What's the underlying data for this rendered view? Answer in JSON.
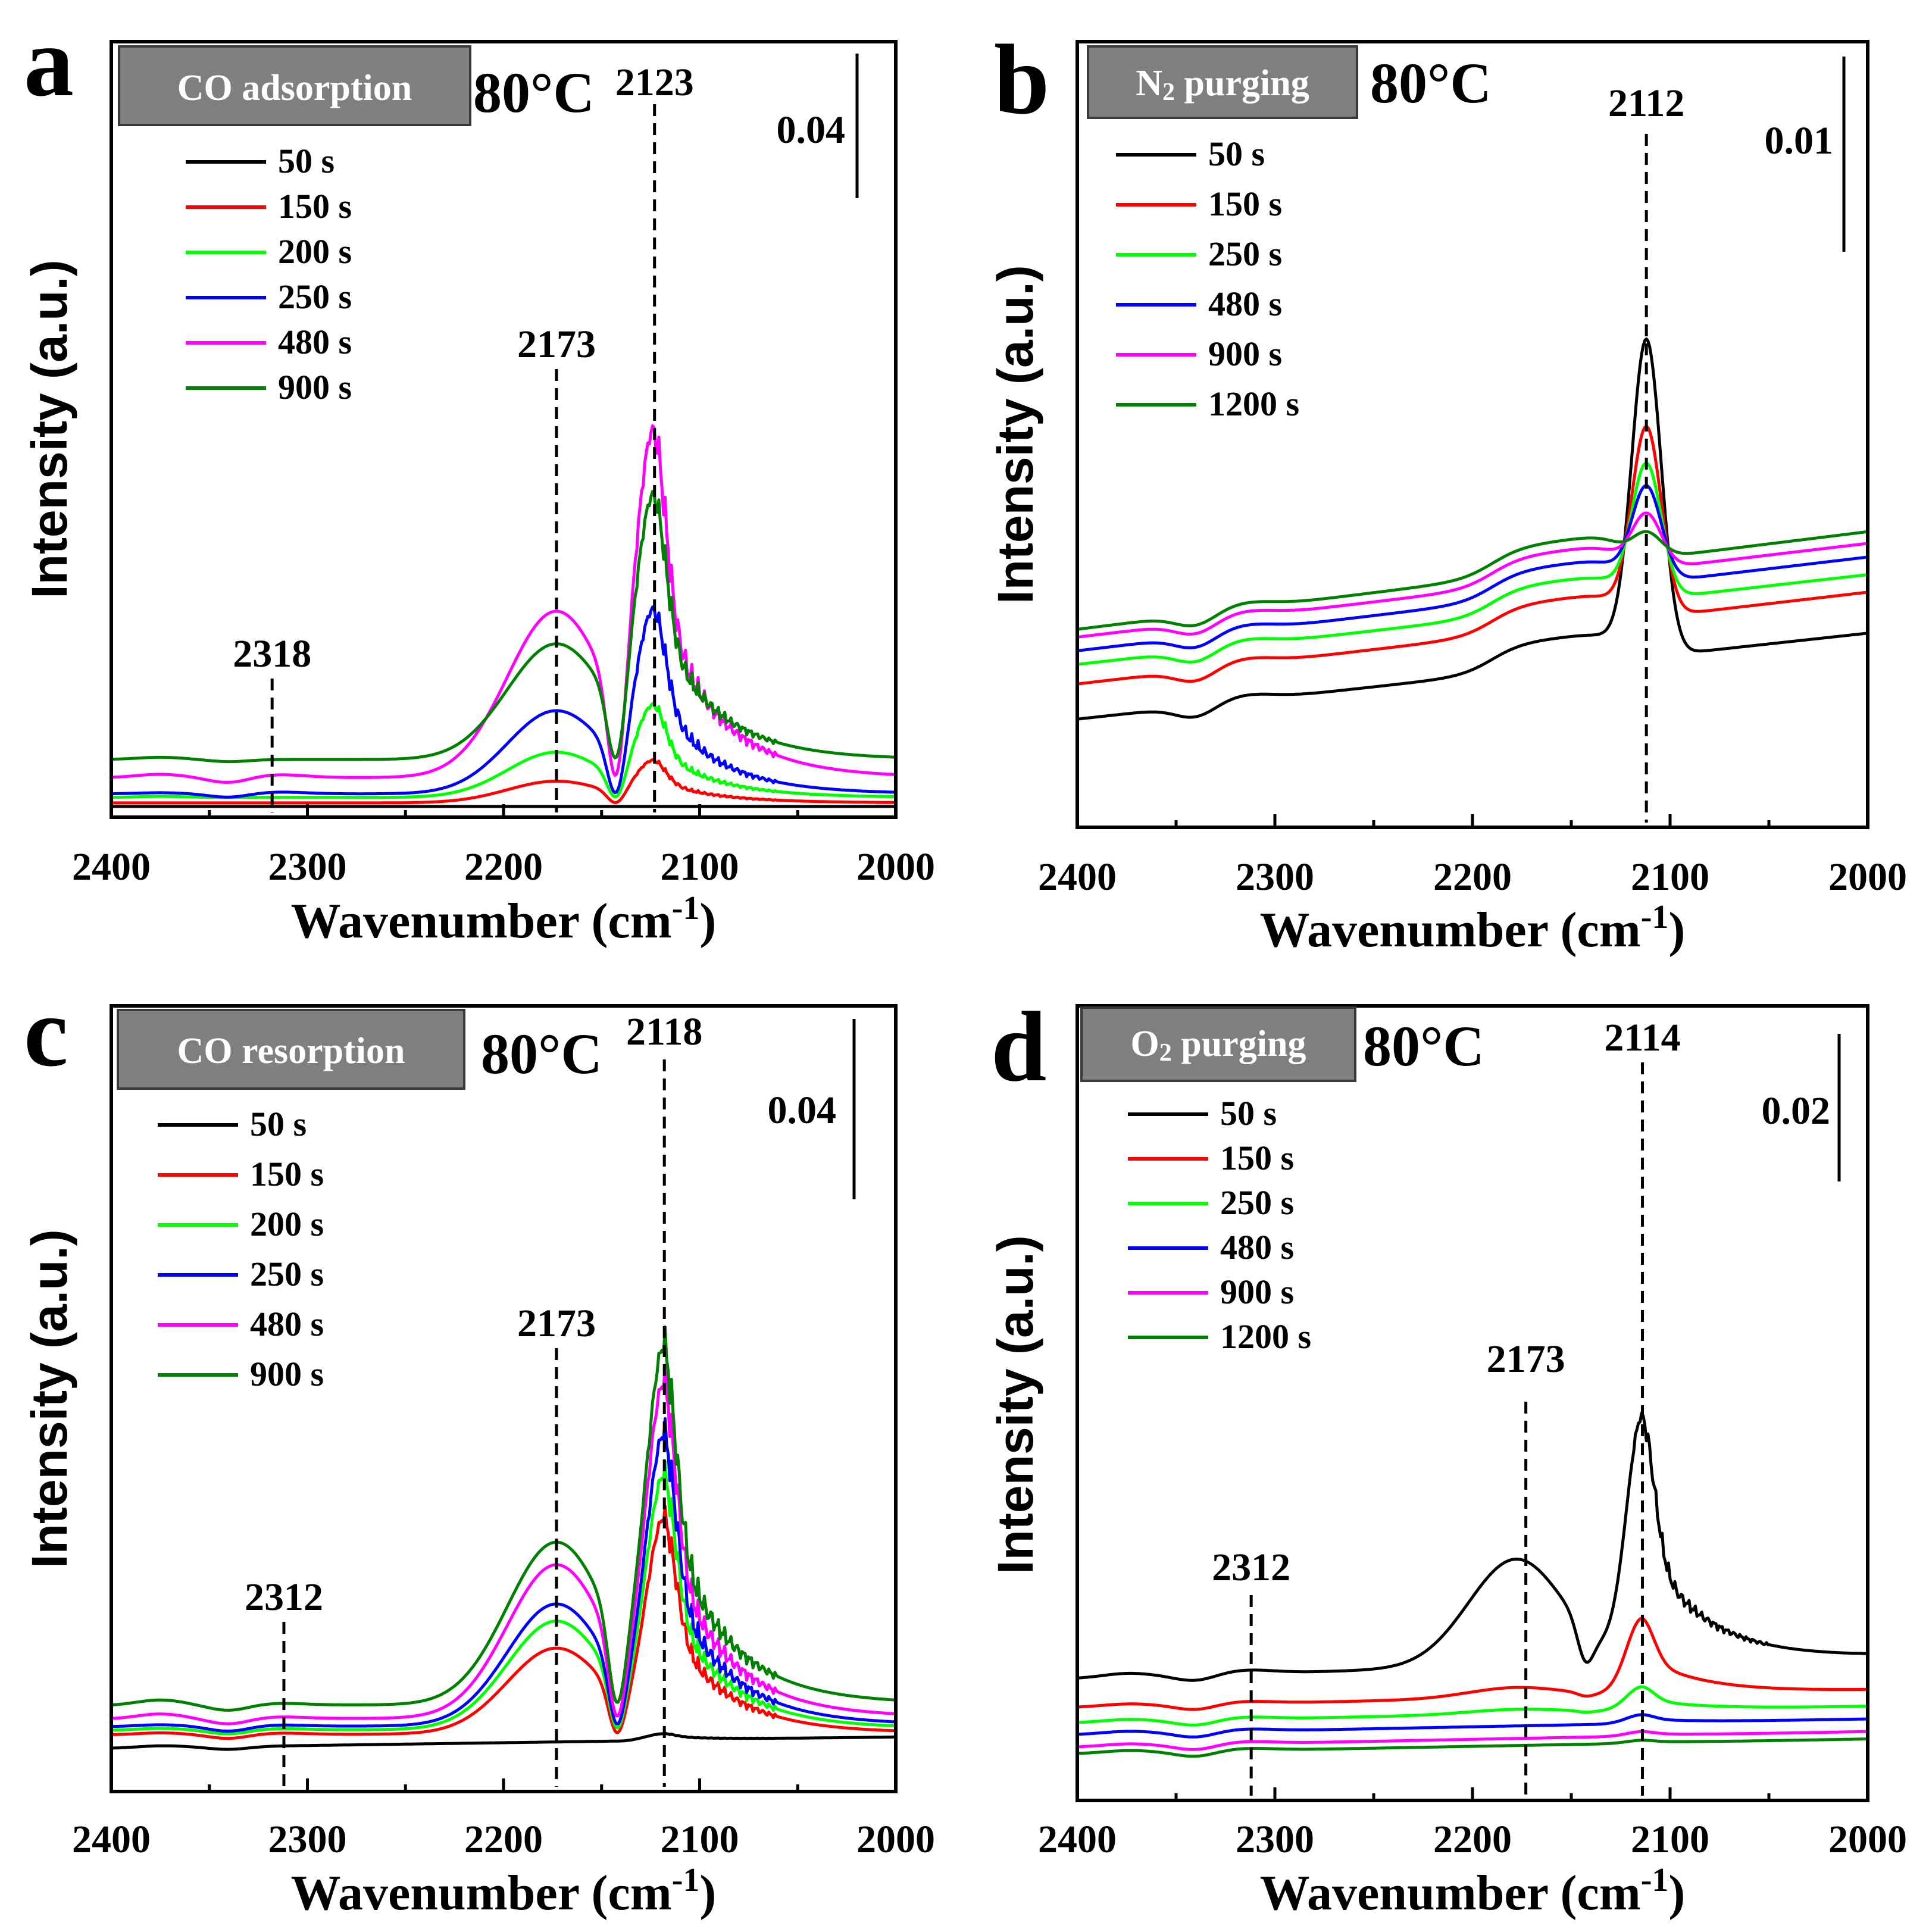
{
  "chart_data": [
    {
      "panel": "a",
      "type": "line",
      "badge": "CO adsorption",
      "temperature": "80°C",
      "scale_bar": {
        "label": "0.04",
        "value": 0.04
      },
      "xlabel": "Wavenumber (cm",
      "xlabel_sup": "-1",
      "xlabel_close": ")",
      "ylabel": "Intensity (a.u.)",
      "xlim": [
        2400,
        2000
      ],
      "ylim": [
        0,
        0.105
      ],
      "xticks": [
        2400,
        2300,
        2200,
        2100,
        2000
      ],
      "peaks": [
        {
          "x": 2318,
          "label": "2318"
        },
        {
          "x": 2173,
          "label": "2173"
        },
        {
          "x": 2123,
          "label": "2123"
        }
      ],
      "series": [
        {
          "name": "50 s",
          "color": "#000000",
          "base": 0.0,
          "slope": 0.0,
          "b1": 0.0,
          "b2": 0.0,
          "b3": 0.0,
          "p2173": 0.0,
          "p2123": 0.0,
          "dip": 0.0
        },
        {
          "name": "150 s",
          "color": "#ff0000",
          "base": 0.001,
          "slope": 0.0,
          "b1": 0.0,
          "b2": 0.0,
          "b3": 0.0,
          "p2173": 0.006,
          "p2123": 0.011,
          "dip": 0.0
        },
        {
          "name": "200 s",
          "color": "#00ff00",
          "base": 0.0025,
          "slope": 0.0,
          "b1": 0.0003,
          "b2": 0.0,
          "b3": 0.0,
          "p2173": 0.0125,
          "p2123": 0.024,
          "dip": 0.0
        },
        {
          "name": "250 s",
          "color": "#0000ff",
          "base": 0.0035,
          "slope": 0.0,
          "b1": 0.0003,
          "b2": -0.001,
          "b3": 0.0005,
          "p2173": 0.023,
          "p2123": 0.048,
          "dip": 0.0
        },
        {
          "name": "480 s",
          "color": "#ff00ff",
          "base": 0.008,
          "slope": 0.0,
          "b1": 0.0009,
          "b2": -0.0015,
          "b3": 0.0008,
          "p2173": 0.046,
          "p2123": 0.09,
          "dip": 0.0
        },
        {
          "name": "900 s",
          "color": "#008000",
          "base": 0.013,
          "slope": 0.0,
          "b1": 0.0006,
          "b2": -0.0006,
          "b3": 0.0,
          "p2173": 0.032,
          "p2123": 0.069,
          "dip": 0.0
        }
      ]
    },
    {
      "panel": "b",
      "type": "line",
      "badge": "N2 purging",
      "badge_main": "N",
      "badge_sub": "2",
      "badge_rest": " purging",
      "temperature": "80°C",
      "scale_bar": {
        "label": "0.01",
        "value": 0.01
      },
      "xlabel": "Wavenumber (cm",
      "xlabel_sup": "-1",
      "xlabel_close": ")",
      "ylabel": "Intensity (a.u.)",
      "xlim": [
        2400,
        2000
      ],
      "ylim": [
        0,
        0.032
      ],
      "xticks": [
        2400,
        2300,
        2200,
        2100,
        2000
      ],
      "peaks": [
        {
          "x": 2112,
          "label": "2112"
        }
      ],
      "series": [
        {
          "name": "50 s",
          "color": "#000000",
          "base": 0.0028,
          "slope": 0.0044,
          "b1": 0.0,
          "b2": -0.0006,
          "b3": 0.0003,
          "p2112": 0.0162
        },
        {
          "name": "150 s",
          "color": "#ff0000",
          "base": 0.0046,
          "slope": 0.0047,
          "b1": 0.0,
          "b2": -0.0006,
          "b3": 0.0003,
          "p2112": 0.0097
        },
        {
          "name": "250 s",
          "color": "#00ff00",
          "base": 0.0056,
          "slope": 0.0046,
          "b1": 0.0,
          "b2": -0.0006,
          "b3": 0.0003,
          "p2112": 0.0069
        },
        {
          "name": "480 s",
          "color": "#0000ff",
          "base": 0.0063,
          "slope": 0.0048,
          "b1": 0.0,
          "b2": -0.0006,
          "b3": 0.0003,
          "p2112": 0.0049
        },
        {
          "name": "900 s",
          "color": "#ff00ff",
          "base": 0.007,
          "slope": 0.0048,
          "b1": 0.0,
          "b2": -0.0006,
          "b3": 0.0003,
          "p2112": 0.0028
        },
        {
          "name": "1200 s",
          "color": "#008000",
          "base": 0.0074,
          "slope": 0.005,
          "b1": 0.0,
          "b2": -0.0006,
          "b3": 0.0003,
          "p2112": 0.0013
        }
      ]
    },
    {
      "panel": "c",
      "type": "line",
      "badge": "CO resorption",
      "temperature": "80°C",
      "scale_bar": {
        "label": "0.04",
        "value": 0.04
      },
      "xlabel": "Wavenumber (cm",
      "xlabel_sup": "-1",
      "xlabel_close": ")",
      "ylabel": "Intensity (a.u.)",
      "xlim": [
        2400,
        2000
      ],
      "ylim": [
        0,
        0.105
      ],
      "xticks": [
        2400,
        2300,
        2200,
        2100,
        2000
      ],
      "peaks": [
        {
          "x": 2312,
          "label": "2312"
        },
        {
          "x": 2173,
          "label": "2173"
        },
        {
          "x": 2118,
          "label": "2118"
        }
      ],
      "series": [
        {
          "name": "50 s",
          "color": "#000000",
          "base": 0.001,
          "slope": 0.0025,
          "b1": 0.0004,
          "b2": -0.0006,
          "b3": 0.0,
          "p2173": 0.0,
          "p2118": 0.0015,
          "dip": 0.0
        },
        {
          "name": "150 s",
          "color": "#ff0000",
          "base": 0.004,
          "slope": 0.0004,
          "b1": 0.0004,
          "b2": -0.0009,
          "b3": 0.0003,
          "p2173": 0.019,
          "p2118": 0.046,
          "dip": 0.0
        },
        {
          "name": "200 s",
          "color": "#00ff00",
          "base": 0.005,
          "slope": 0.0004,
          "b1": 0.0004,
          "b2": -0.0009,
          "b3": 0.0003,
          "p2173": 0.024,
          "p2118": 0.054,
          "dip": 0.0
        },
        {
          "name": "250 s",
          "color": "#0000ff",
          "base": 0.0058,
          "slope": 0.0004,
          "b1": 0.0004,
          "b2": -0.0011,
          "b3": 0.0003,
          "p2173": 0.027,
          "p2118": 0.062,
          "dip": 0.0
        },
        {
          "name": "480 s",
          "color": "#ff00ff",
          "base": 0.0075,
          "slope": 0.0004,
          "b1": 0.0011,
          "b2": -0.0012,
          "b3": 0.0004,
          "p2173": 0.034,
          "p2118": 0.071,
          "dip": 0.0
        },
        {
          "name": "900 s",
          "color": "#008000",
          "base": 0.0105,
          "slope": 0.0004,
          "b1": 0.0012,
          "b2": -0.0012,
          "b3": 0.0004,
          "p2173": 0.036,
          "p2118": 0.076,
          "dip": 0.0
        }
      ]
    },
    {
      "panel": "d",
      "type": "line",
      "badge": "O2 purging",
      "badge_main": "O",
      "badge_sub": "2",
      "badge_rest": " purging",
      "temperature": "80°C",
      "scale_bar": {
        "label": "0.02",
        "value": 0.02
      },
      "xlabel": "Wavenumber (cm",
      "xlabel_sup": "-1",
      "xlabel_close": ")",
      "ylabel": "Intensity (a.u.)",
      "xlim": [
        2400,
        2000
      ],
      "ylim": [
        0,
        0.063
      ],
      "xticks": [
        2400,
        2300,
        2200,
        2100,
        2000
      ],
      "peaks": [
        {
          "x": 2312,
          "label": "2312"
        },
        {
          "x": 2173,
          "label": "2173"
        },
        {
          "x": 2114,
          "label": "2114"
        }
      ],
      "series": [
        {
          "name": "50 s",
          "color": "#000000",
          "base": 0.0125,
          "slope": 0.003,
          "b1": 0.0005,
          "b2": -0.0008,
          "b3": 0.0005,
          "p2173": 0.0145,
          "p2114": 0.033,
          "dip": 0.0
        },
        {
          "name": "150 s",
          "color": "#ff0000",
          "base": 0.0086,
          "slope": 0.0023,
          "b1": 0.0003,
          "b2": -0.0007,
          "b3": 0.0003,
          "p2173": 0.0014,
          "p2114": 0.0104,
          "dip": 0.0
        },
        {
          "name": "250 s",
          "color": "#00ff00",
          "base": 0.0065,
          "slope": 0.0022,
          "b1": 0.0003,
          "b2": -0.0007,
          "b3": 0.0003,
          "p2173": 0.0006,
          "p2114": 0.0033,
          "dip": 0.0
        },
        {
          "name": "480 s",
          "color": "#0000ff",
          "base": 0.0049,
          "slope": 0.0021,
          "b1": 0.0003,
          "b2": -0.0007,
          "b3": 0.0003,
          "p2173": 0.0,
          "p2114": 0.0012,
          "dip": 0.0
        },
        {
          "name": "900 s",
          "color": "#ff00ff",
          "base": 0.0032,
          "slope": 0.0021,
          "b1": 0.0003,
          "b2": -0.0007,
          "b3": 0.0003,
          "p2173": 0.0,
          "p2114": 0.0006,
          "dip": 0.0
        },
        {
          "name": "1200 s",
          "color": "#008000",
          "base": 0.0023,
          "slope": 0.002,
          "b1": 0.0003,
          "b2": -0.0007,
          "b3": 0.0003,
          "p2173": 0.0,
          "p2114": 0.0004,
          "dip": 0.0
        }
      ]
    }
  ]
}
